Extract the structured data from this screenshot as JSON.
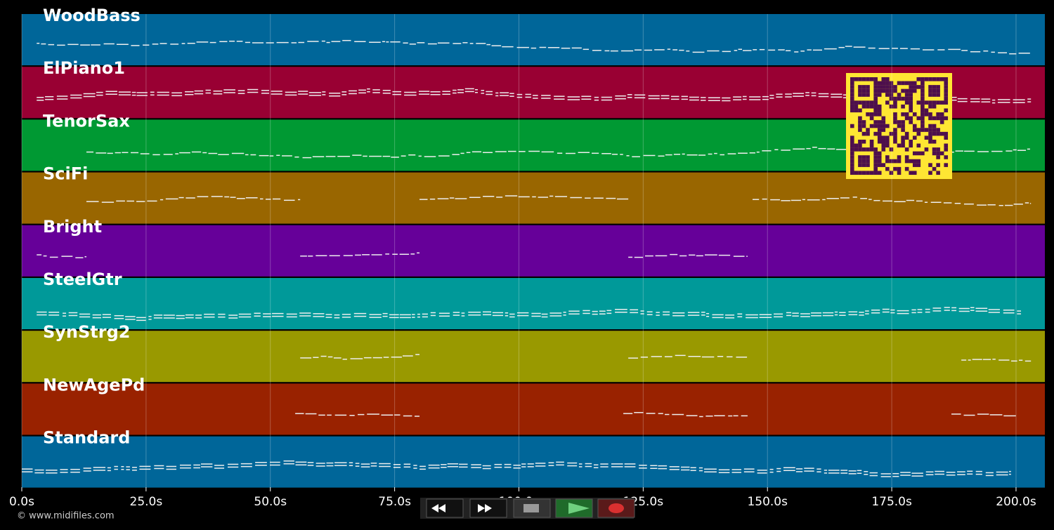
{
  "chart_data": {
    "type": "pianoroll",
    "xlim": [
      0,
      205.8
    ],
    "xticks": [
      {
        "value": 0,
        "label": "0.0s"
      },
      {
        "value": 25,
        "label": "25.0s"
      },
      {
        "value": 50,
        "label": "50.0s"
      },
      {
        "value": 75,
        "label": "75.0s"
      },
      {
        "value": 100,
        "label": "100.0s"
      },
      {
        "value": 125,
        "label": "125.0s"
      },
      {
        "value": 150,
        "label": "150.0s"
      },
      {
        "value": 175,
        "label": "175.0s"
      },
      {
        "value": 200,
        "label": "200.0s"
      }
    ],
    "grid": true,
    "tracks": [
      {
        "name": "WoodBass",
        "color": "#006699",
        "active": [
          [
            3,
            203
          ]
        ]
      },
      {
        "name": "ElPiano1",
        "color": "#990033",
        "active": [
          [
            3,
            203
          ]
        ]
      },
      {
        "name": "TenorSax",
        "color": "#009933",
        "active": [
          [
            13,
            203
          ]
        ]
      },
      {
        "name": "SciFi",
        "color": "#996600",
        "active": [
          [
            13,
            56
          ],
          [
            80,
            122
          ],
          [
            147,
            203
          ]
        ]
      },
      {
        "name": "Bright",
        "color": "#660099",
        "active": [
          [
            3,
            13
          ],
          [
            56,
            80
          ],
          [
            122,
            146
          ]
        ]
      },
      {
        "name": "SteelGtr",
        "color": "#009999",
        "active": [
          [
            3,
            201
          ]
        ]
      },
      {
        "name": "SynStrg2",
        "color": "#999900",
        "active": [
          [
            56,
            80
          ],
          [
            122,
            146
          ],
          [
            189,
            203
          ]
        ]
      },
      {
        "name": "NewAgePd",
        "color": "#992200",
        "active": [
          [
            55,
            80
          ],
          [
            121,
            146
          ],
          [
            187,
            200
          ]
        ]
      },
      {
        "name": "Standard",
        "color": "#006699",
        "active": [
          [
            0,
            199
          ]
        ]
      }
    ]
  },
  "footer": {
    "copyright": "© www.midifiles.com"
  }
}
